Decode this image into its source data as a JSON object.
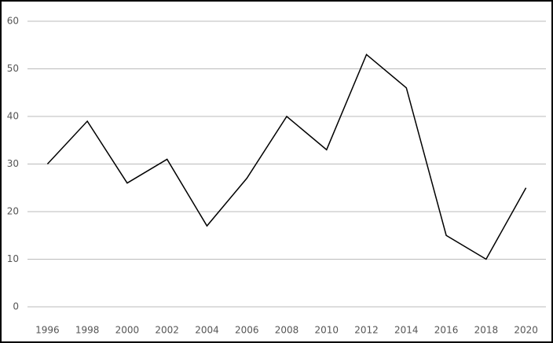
{
  "chart_data": {
    "type": "line",
    "categories": [
      "1996",
      "1998",
      "2000",
      "2002",
      "2004",
      "2006",
      "2008",
      "2010",
      "2012",
      "2014",
      "2016",
      "2018",
      "2020"
    ],
    "values": [
      30,
      39,
      26,
      31,
      17,
      27,
      40,
      33,
      53,
      46,
      15,
      10,
      25
    ],
    "color": "#000000",
    "ylim": [
      0,
      60
    ],
    "yticks": [
      0,
      10,
      20,
      30,
      40,
      50,
      60
    ],
    "grid": true
  }
}
